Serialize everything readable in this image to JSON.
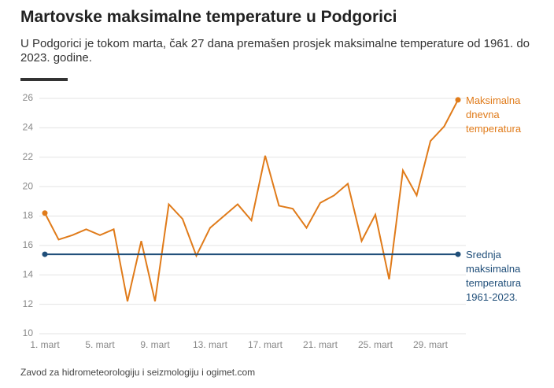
{
  "chart_data": {
    "type": "line",
    "title": "Martovske maksimalne temperature u Podgorici",
    "subtitle": "U Podgorici je tokom marta, čak 27 dana premašen prosjek maksimalne temperature od 1961. do 2023. godine.",
    "source": "Zavod za hidrometeorologiju i seizmologiju i ogimet.com",
    "categories": [
      "1. mart",
      null,
      null,
      null,
      "5. mart",
      null,
      null,
      null,
      "9. mart",
      null,
      null,
      null,
      "13. mart",
      null,
      null,
      null,
      "17. mart",
      null,
      null,
      null,
      "21. mart",
      null,
      null,
      null,
      "25. mart",
      null,
      null,
      null,
      "29. mart",
      null,
      null
    ],
    "series": [
      {
        "name": "Maksimalna dnevna temperatura",
        "color": "#e07b1a",
        "values": [
          18.2,
          16.4,
          16.7,
          17.1,
          16.7,
          17.1,
          12.2,
          16.3,
          12.2,
          18.8,
          17.8,
          15.3,
          17.2,
          18.0,
          18.8,
          17.7,
          22.1,
          18.7,
          18.5,
          17.2,
          18.9,
          19.4,
          20.2,
          16.3,
          18.1,
          13.7,
          21.1,
          19.4,
          23.1,
          24.1,
          25.9
        ]
      },
      {
        "name": "Srednja maksimalna temperatura 1961-2023.",
        "color": "#1f4e79",
        "values": [
          15.4,
          15.4,
          15.4,
          15.4,
          15.4,
          15.4,
          15.4,
          15.4,
          15.4,
          15.4,
          15.4,
          15.4,
          15.4,
          15.4,
          15.4,
          15.4,
          15.4,
          15.4,
          15.4,
          15.4,
          15.4,
          15.4,
          15.4,
          15.4,
          15.4,
          15.4,
          15.4,
          15.4,
          15.4,
          15.4,
          15.4
        ]
      }
    ],
    "ylim": [
      10,
      26
    ],
    "yticks": [
      10,
      12,
      14,
      16,
      18,
      20,
      22,
      24,
      26
    ],
    "grid": true
  }
}
